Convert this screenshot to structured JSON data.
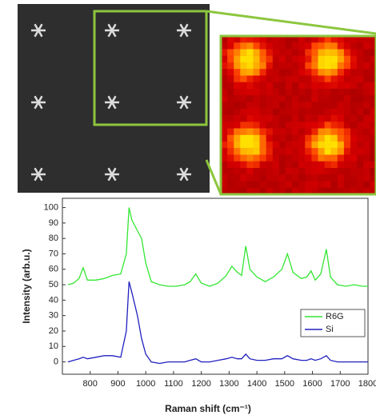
{
  "chart_data": {
    "type": "line",
    "x_label": "Raman shift (cm⁻¹)",
    "y_label": "Intensity (arb.u.)",
    "x": [
      720,
      740,
      760,
      775,
      790,
      820,
      850,
      880,
      910,
      930,
      940,
      950,
      970,
      985,
      1000,
      1020,
      1050,
      1080,
      1110,
      1140,
      1160,
      1180,
      1200,
      1230,
      1260,
      1290,
      1310,
      1330,
      1345,
      1360,
      1375,
      1400,
      1430,
      1460,
      1490,
      1510,
      1530,
      1560,
      1580,
      1595,
      1610,
      1630,
      1650,
      1665,
      1690,
      1720,
      1750,
      1780,
      1800
    ],
    "series": [
      {
        "name": "R6G",
        "color": "#33e633",
        "values": [
          50,
          51,
          54,
          61,
          53,
          53,
          54,
          56,
          57,
          70,
          100,
          92,
          85,
          80,
          64,
          52,
          50,
          49,
          49,
          50,
          52,
          57,
          51,
          49,
          51,
          56,
          62,
          58,
          56,
          75,
          60,
          55,
          52,
          55,
          60,
          70,
          58,
          54,
          55,
          59,
          53,
          57,
          73,
          55,
          50,
          49,
          50,
          49,
          49
        ]
      },
      {
        "name": "Si",
        "color": "#2020c0",
        "values": [
          0,
          1,
          2,
          3,
          2,
          3,
          4,
          4,
          3,
          20,
          52,
          45,
          30,
          15,
          5,
          0,
          -1,
          0,
          0,
          0,
          1,
          2,
          0,
          0,
          1,
          2,
          3,
          2,
          2,
          5,
          2,
          1,
          1,
          2,
          2,
          4,
          2,
          1,
          1,
          2,
          1,
          2,
          4,
          1,
          0,
          0,
          0,
          0,
          0
        ]
      }
    ],
    "xlim": [
      700,
      1800
    ],
    "xticks": [
      800,
      900,
      1000,
      1100,
      1200,
      1300,
      1400,
      1500,
      1600,
      1700,
      1800
    ],
    "ylim": [
      -8,
      106
    ],
    "yticks": [
      0,
      10,
      20,
      30,
      40,
      50,
      60,
      70,
      80,
      90,
      100
    ],
    "grid": false,
    "legend": "right"
  }
}
